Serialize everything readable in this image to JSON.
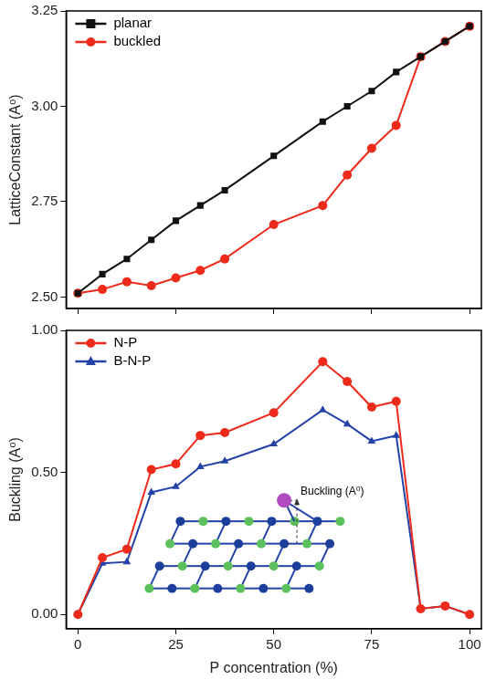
{
  "chart_data": [
    {
      "type": "line",
      "y_label": "LatticeConstant (A⁰)",
      "x": [
        0,
        6.25,
        12.5,
        18.75,
        25,
        31.25,
        37.5,
        50,
        62.5,
        68.75,
        75,
        81.25,
        87.5,
        93.75,
        100
      ],
      "series": [
        {
          "name": "planar",
          "color": "#111111",
          "marker": "square",
          "line_style": "solid",
          "values": [
            2.51,
            2.56,
            2.6,
            2.65,
            2.7,
            2.74,
            2.78,
            2.87,
            2.96,
            3.0,
            3.04,
            3.09,
            3.13,
            3.17,
            3.21
          ]
        },
        {
          "name": "buckled",
          "color": "#ee2a1b",
          "marker": "circle",
          "line_style": "solid",
          "values": [
            2.51,
            2.52,
            2.54,
            2.53,
            2.55,
            2.57,
            2.6,
            2.69,
            2.74,
            2.82,
            2.89,
            2.95,
            3.13,
            3.17,
            3.21
          ]
        }
      ],
      "xlim": [
        -3,
        103
      ],
      "ylim": [
        2.47,
        3.25
      ],
      "xticks": [
        0,
        25,
        50,
        75,
        100
      ],
      "yticks": [
        {
          "value": 2.5,
          "label": "2.50"
        },
        {
          "value": 2.75,
          "label": "2.75"
        },
        {
          "value": 3,
          "label": "3.00"
        },
        {
          "value": 3.25,
          "label": "3.25"
        }
      ],
      "grid": false,
      "legend": "upper left",
      "tick_labels": "y"
    },
    {
      "type": "line",
      "x_label": "P concentration (%)",
      "y_label": "Buckling (A⁰)",
      "annotation": "Buckling (A⁰)",
      "x": [
        0,
        6.25,
        12.5,
        18.75,
        25,
        31.25,
        37.5,
        50,
        62.5,
        68.75,
        75,
        81.25,
        87.5,
        93.75,
        100
      ],
      "series": [
        {
          "name": "N-P",
          "color": "#ee2a1b",
          "marker": "circle",
          "line_style": "solid",
          "values": [
            0,
            0.2,
            0.23,
            0.51,
            0.53,
            0.63,
            0.64,
            0.71,
            0.89,
            0.82,
            0.73,
            0.75,
            0.02,
            0.03,
            0
          ]
        },
        {
          "name": "B-N-P",
          "color": "#2342a8",
          "marker": "triangle",
          "line_style": "solid",
          "values": [
            0,
            0.18,
            0.185,
            0.43,
            0.45,
            0.52,
            0.54,
            0.6,
            0.72,
            0.67,
            0.61,
            0.63,
            0.02,
            0.03,
            0
          ]
        }
      ],
      "xlim": [
        -3,
        103
      ],
      "ylim": [
        -0.05,
        1
      ],
      "xticks": [
        0,
        25,
        50,
        75,
        100
      ],
      "yticks": [
        {
          "value": 0,
          "label": "0.00"
        },
        {
          "value": 0.5,
          "label": "0.50"
        },
        {
          "value": 1,
          "label": "1.00"
        }
      ],
      "grid": false,
      "legend": "upper left"
    }
  ]
}
